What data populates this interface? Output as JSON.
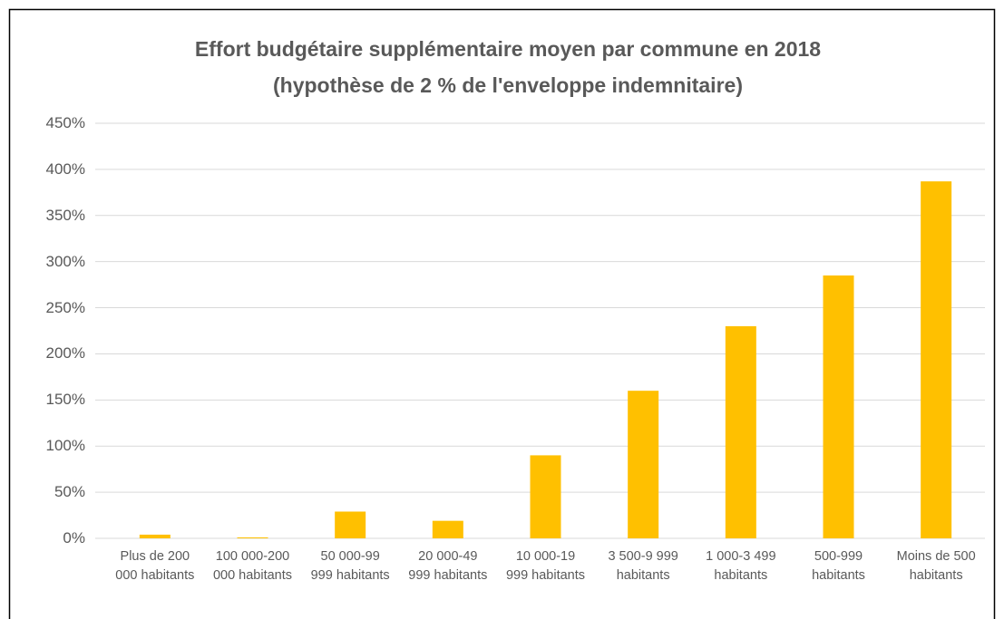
{
  "chart_data": {
    "type": "bar",
    "title": "Effort budgétaire supplémentaire moyen par commune en 2018\n(hypothèse de 2 % de l'enveloppe indemnitaire)",
    "categories": [
      "Plus de 200\n000 habitants",
      "100 000-200\n000 habitants",
      "50 000-99\n999 habitants",
      "20 000-49\n999 habitants",
      "10 000-19\n999 habitants",
      "3 500-9 999\nhabitants",
      "1 000-3 499\nhabitants",
      "500-999\nhabitants",
      "Moins de 500\nhabitants"
    ],
    "values": [
      4,
      1,
      29,
      19,
      90,
      160,
      230,
      285,
      387
    ],
    "color": "#ffc000",
    "ylim": [
      0,
      450
    ],
    "yticks": [
      {
        "value": 0,
        "label": "0%"
      },
      {
        "value": 50,
        "label": "50%"
      },
      {
        "value": 100,
        "label": "100%"
      },
      {
        "value": 150,
        "label": "150%"
      },
      {
        "value": 200,
        "label": "200%"
      },
      {
        "value": 250,
        "label": "250%"
      },
      {
        "value": 300,
        "label": "300%"
      },
      {
        "value": 350,
        "label": "350%"
      },
      {
        "value": 400,
        "label": "400%"
      },
      {
        "value": 450,
        "label": "450%"
      }
    ],
    "grid": true
  }
}
